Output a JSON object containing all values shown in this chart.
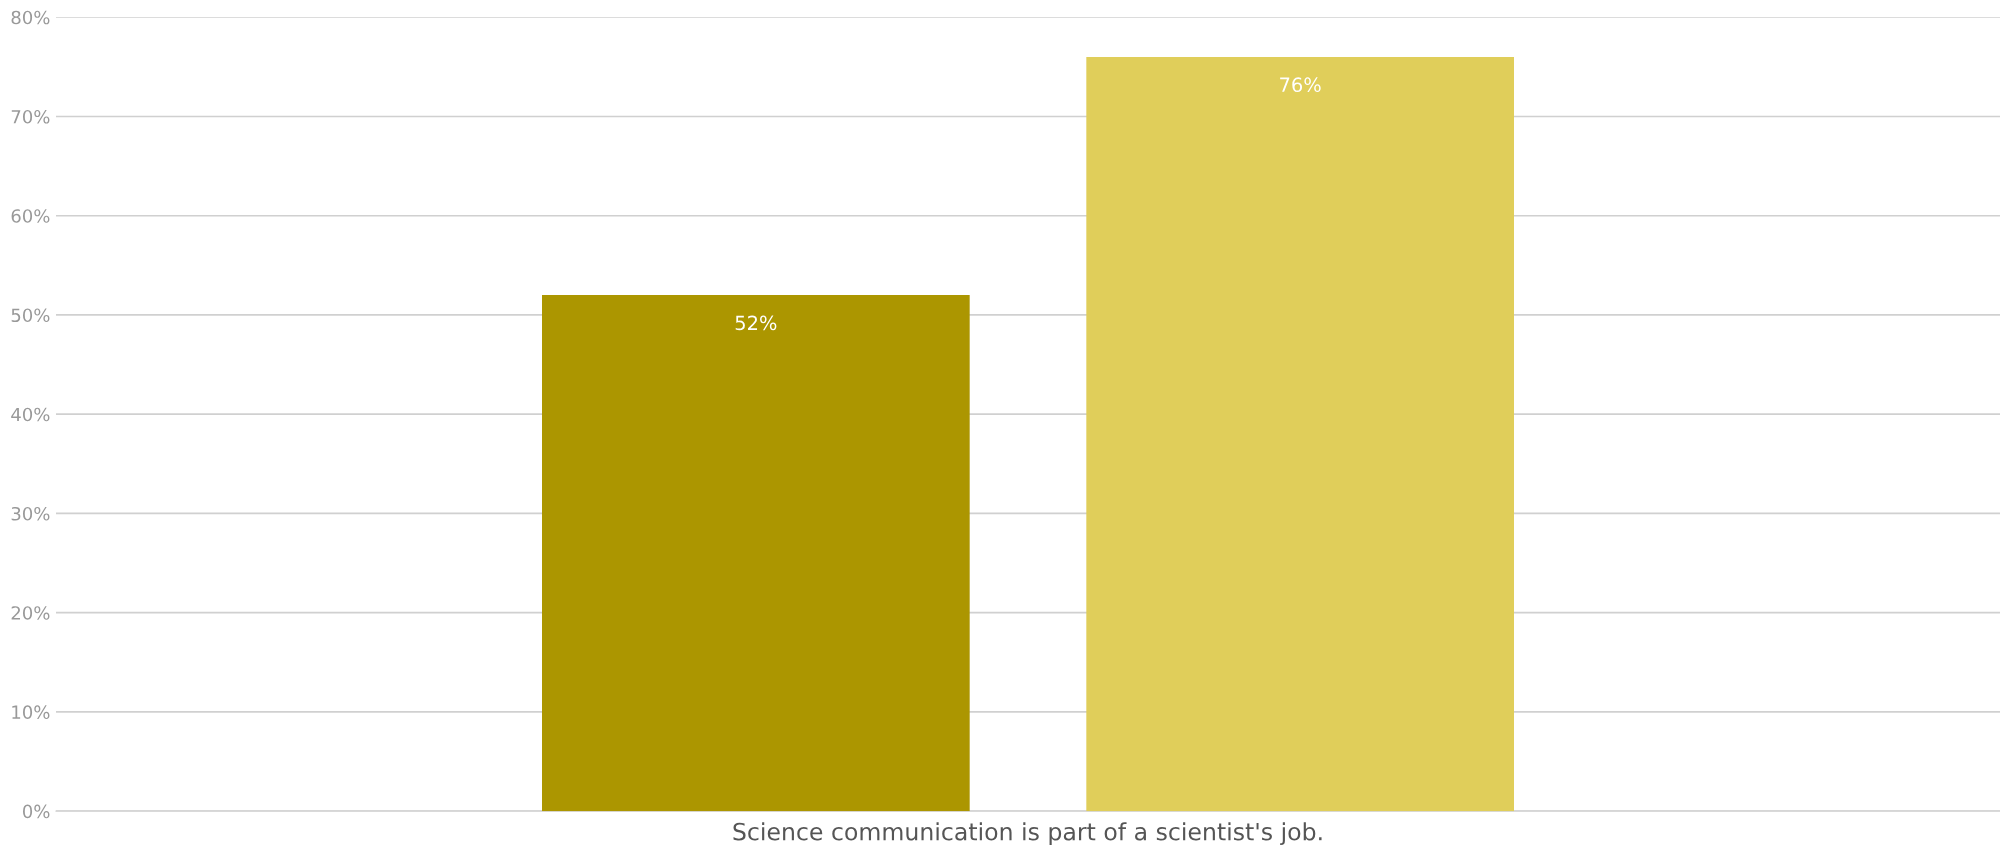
{
  "chart_data": {
    "type": "bar",
    "categories": [
      "Science communication is part of a scientist's job."
    ],
    "series": [
      {
        "color": "#ac9600",
        "values": [
          52
        ],
        "value_labels": [
          "52%"
        ]
      },
      {
        "color": "#e0ce5a",
        "values": [
          76
        ],
        "value_labels": [
          "76%"
        ]
      }
    ],
    "ylim": [
      0,
      80
    ],
    "yticks": [
      {
        "value": 0,
        "label": "0%"
      },
      {
        "value": 10,
        "label": "10%"
      },
      {
        "value": 20,
        "label": "20%"
      },
      {
        "value": 30,
        "label": "30%"
      },
      {
        "value": 40,
        "label": "40%"
      },
      {
        "value": 50,
        "label": "50%"
      },
      {
        "value": 60,
        "label": "60%"
      },
      {
        "value": 70,
        "label": "70%"
      },
      {
        "value": 80,
        "label": "80%"
      }
    ],
    "grid": "y"
  }
}
